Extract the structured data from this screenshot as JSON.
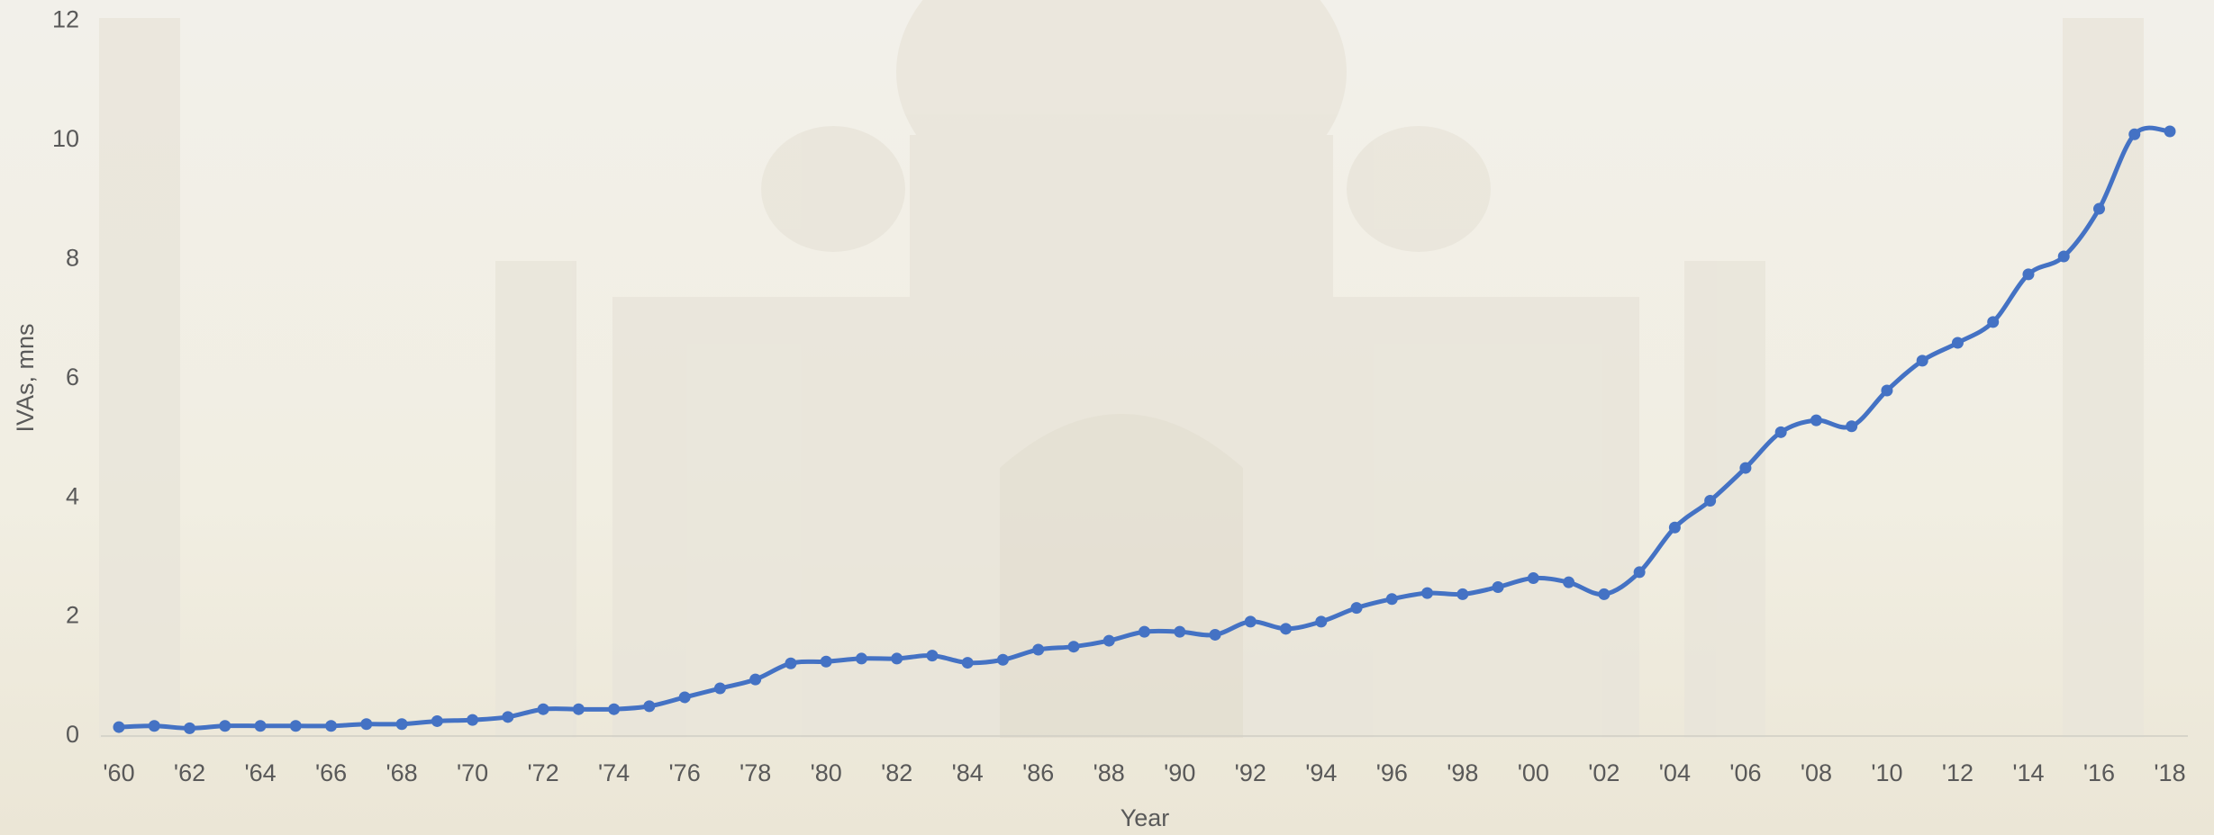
{
  "chart_data": {
    "type": "line",
    "x_label": "Year",
    "y_label": "IVAs, mns",
    "categories": [
      "'60",
      null,
      "'62",
      null,
      "'64",
      null,
      "'66",
      null,
      "'68",
      null,
      "'70",
      null,
      "'72",
      null,
      "'74",
      null,
      "'76",
      null,
      "'78",
      null,
      "'80",
      null,
      "'82",
      null,
      "'84",
      null,
      "'86",
      null,
      "'88",
      null,
      "'90",
      null,
      "'92",
      null,
      "'94",
      null,
      "'96",
      null,
      "'98",
      null,
      "'00",
      null,
      "'02",
      null,
      "'04",
      null,
      "'06",
      null,
      "'08",
      null,
      "'10",
      null,
      "'12",
      null,
      "'14",
      null,
      "'16",
      null,
      "'18"
    ],
    "values": [
      0.15,
      0.17,
      0.13,
      0.17,
      0.17,
      0.17,
      0.17,
      0.2,
      0.2,
      0.25,
      0.27,
      0.32,
      0.45,
      0.45,
      0.45,
      0.5,
      0.65,
      0.8,
      0.95,
      1.22,
      1.25,
      1.3,
      1.3,
      1.35,
      1.23,
      1.28,
      1.45,
      1.5,
      1.6,
      1.75,
      1.75,
      1.7,
      1.92,
      1.8,
      1.92,
      2.15,
      2.3,
      2.4,
      2.38,
      2.5,
      2.65,
      2.58,
      2.38,
      2.75,
      3.5,
      3.95,
      4.5,
      5.1,
      5.3,
      5.2,
      5.8,
      6.3,
      6.6,
      6.95,
      7.75,
      8.05,
      8.85,
      10.1,
      10.15
    ],
    "color": "#4472c4",
    "ylim": [
      0,
      12
    ],
    "yticks": [
      0,
      2,
      4,
      6,
      8,
      10,
      12
    ],
    "grid": false
  }
}
